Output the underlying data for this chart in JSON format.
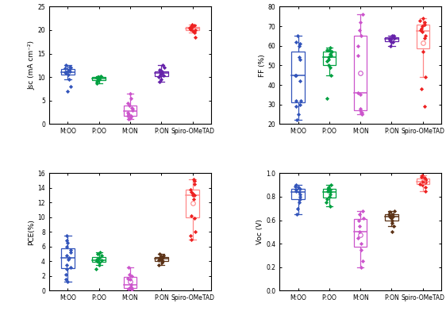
{
  "categories": [
    "M:OO",
    "P:OO",
    "M:ON",
    "P:ON",
    "Spiro-OMeTAD"
  ],
  "jsc": {
    "ylabel": "Jsc (mA cm⁻²)",
    "ylim": [
      0,
      25
    ],
    "yticks": [
      0,
      5,
      10,
      15,
      20,
      25
    ],
    "colors": [
      "#3355BB",
      "#00A040",
      "#CC55CC",
      "#6622AA",
      "#EE2222"
    ],
    "box_colors": [
      "#3355BB",
      "#00A040",
      "#CC55CC",
      "#6622AA",
      "#FF8888"
    ],
    "data": [
      [
        7.0,
        8.0,
        9.5,
        10.5,
        10.8,
        11.0,
        11.0,
        11.2,
        11.4,
        11.5,
        11.8,
        12.0,
        12.2,
        12.5
      ],
      [
        8.7,
        9.0,
        9.2,
        9.5,
        9.6,
        9.7,
        9.8,
        9.9,
        10.0,
        10.0,
        10.1,
        10.2
      ],
      [
        1.0,
        1.2,
        1.5,
        1.7,
        1.8,
        2.0,
        2.5,
        3.0,
        3.2,
        3.5,
        4.0,
        4.5,
        5.5,
        6.5
      ],
      [
        9.0,
        9.5,
        10.0,
        10.3,
        10.5,
        10.8,
        11.0,
        11.0,
        11.2,
        11.5,
        12.0,
        12.5
      ],
      [
        18.5,
        19.5,
        19.8,
        20.0,
        20.2,
        20.3,
        20.5,
        20.5,
        20.7,
        20.8,
        21.0,
        21.2
      ]
    ],
    "mean_show": [
      false,
      false,
      false,
      false,
      false
    ]
  },
  "ff": {
    "ylabel": "FF (%)",
    "ylim": [
      20,
      80
    ],
    "yticks": [
      20,
      30,
      40,
      50,
      60,
      70,
      80
    ],
    "colors": [
      "#3355BB",
      "#00A040",
      "#CC55CC",
      "#6622AA",
      "#EE2222"
    ],
    "box_colors": [
      "#3355BB",
      "#00A040",
      "#CC55CC",
      "#6622AA",
      "#FF8888"
    ],
    "data": [
      [
        22.0,
        25.0,
        29.0,
        30.0,
        32.0,
        32.0,
        42.0,
        45.0,
        45.0,
        53.0,
        54.0,
        60.0,
        61.0,
        62.0,
        65.0
      ],
      [
        33.0,
        45.0,
        49.0,
        50.0,
        52.0,
        53.0,
        54.0,
        55.0,
        56.0,
        57.0,
        58.0,
        58.0,
        59.0
      ],
      [
        25.0,
        26.0,
        26.0,
        27.0,
        28.0,
        35.0,
        36.0,
        55.0,
        60.0,
        65.0,
        68.0,
        72.0,
        76.0
      ],
      [
        60.0,
        62.0,
        62.0,
        63.0,
        63.0,
        63.5,
        64.0,
        64.0,
        64.5,
        65.0,
        65.0
      ],
      [
        29.0,
        38.0,
        44.0,
        57.0,
        64.0,
        65.0,
        67.0,
        68.0,
        69.0,
        70.0,
        71.0,
        72.0,
        73.0,
        74.0
      ]
    ],
    "mean_show": [
      false,
      false,
      true,
      true,
      true
    ]
  },
  "pce": {
    "ylabel": "PCE(%)",
    "ylim": [
      0,
      16
    ],
    "yticks": [
      0,
      2,
      4,
      6,
      8,
      10,
      12,
      14,
      16
    ],
    "colors": [
      "#3355BB",
      "#00A040",
      "#CC55CC",
      "#5C3317",
      "#EE2222"
    ],
    "box_colors": [
      "#3355BB",
      "#00A040",
      "#CC55CC",
      "#5C3317",
      "#FF8888"
    ],
    "data": [
      [
        1.2,
        1.5,
        2.2,
        3.0,
        3.2,
        3.5,
        4.3,
        4.5,
        4.8,
        5.2,
        5.5,
        6.0,
        6.5,
        6.8,
        7.5
      ],
      [
        3.0,
        3.5,
        3.8,
        4.0,
        4.0,
        4.1,
        4.2,
        4.3,
        4.5,
        4.8,
        5.0,
        5.2
      ],
      [
        0.1,
        0.2,
        0.3,
        0.4,
        0.5,
        0.8,
        1.5,
        1.7,
        2.0,
        2.2,
        3.2
      ],
      [
        3.5,
        3.8,
        4.0,
        4.1,
        4.2,
        4.3,
        4.4,
        4.5,
        4.6,
        4.7,
        4.8,
        5.0
      ],
      [
        7.0,
        7.5,
        8.0,
        9.9,
        10.2,
        12.5,
        13.0,
        13.0,
        13.2,
        13.5,
        13.8,
        14.5,
        15.0,
        15.2
      ]
    ],
    "mean_show": [
      false,
      false,
      true,
      false,
      true
    ]
  },
  "voc": {
    "ylabel": "Voc (V)",
    "ylim": [
      0.0,
      1.0
    ],
    "yticks": [
      0.0,
      0.2,
      0.4,
      0.6,
      0.8,
      1.0
    ],
    "colors": [
      "#3355BB",
      "#00A040",
      "#CC55CC",
      "#5C3317",
      "#EE2222"
    ],
    "box_colors": [
      "#3355BB",
      "#00A040",
      "#CC55CC",
      "#5C3317",
      "#FF8888"
    ],
    "data": [
      [
        0.65,
        0.7,
        0.75,
        0.78,
        0.8,
        0.82,
        0.84,
        0.85,
        0.86,
        0.87,
        0.88,
        0.89,
        0.9
      ],
      [
        0.72,
        0.75,
        0.78,
        0.8,
        0.82,
        0.84,
        0.85,
        0.86,
        0.87,
        0.88,
        0.9
      ],
      [
        0.2,
        0.25,
        0.35,
        0.4,
        0.45,
        0.5,
        0.55,
        0.6,
        0.62,
        0.65,
        0.68
      ],
      [
        0.5,
        0.55,
        0.58,
        0.6,
        0.62,
        0.63,
        0.63,
        0.64,
        0.65,
        0.65,
        0.67,
        0.68
      ],
      [
        0.85,
        0.88,
        0.9,
        0.91,
        0.92,
        0.93,
        0.94,
        0.95,
        0.96,
        0.97,
        0.98
      ]
    ],
    "mean_show": [
      false,
      false,
      true,
      false,
      true
    ]
  }
}
